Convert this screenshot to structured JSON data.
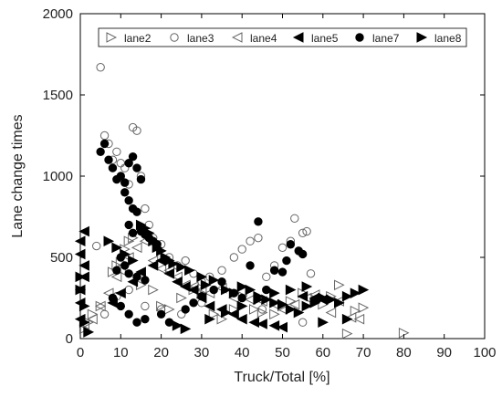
{
  "chart_data": {
    "type": "scatter",
    "title": "",
    "xlabel": "Truck/Total [%]",
    "ylabel": "Lane change times",
    "xlim": [
      0,
      100
    ],
    "ylim": [
      0,
      2000
    ],
    "xticks": [
      0,
      10,
      20,
      30,
      40,
      50,
      60,
      70,
      80,
      90,
      100
    ],
    "yticks": [
      0,
      500,
      1000,
      1500,
      2000
    ],
    "grid": false,
    "legend_position": "top",
    "series": [
      {
        "name": "lane2",
        "marker": "triangle-right-open",
        "color": "#666666",
        "points": [
          [
            1,
            60
          ],
          [
            2,
            40
          ],
          [
            2,
            100
          ],
          [
            3,
            150
          ],
          [
            5,
            200
          ],
          [
            8,
            410
          ],
          [
            9,
            450
          ],
          [
            10,
            470
          ],
          [
            11,
            550
          ],
          [
            12,
            600
          ],
          [
            13,
            620
          ],
          [
            15,
            330
          ],
          [
            18,
            300
          ],
          [
            20,
            200
          ],
          [
            22,
            180
          ],
          [
            25,
            250
          ],
          [
            28,
            300
          ],
          [
            30,
            280
          ],
          [
            33,
            150
          ],
          [
            35,
            120
          ],
          [
            38,
            180
          ],
          [
            40,
            200
          ],
          [
            43,
            180
          ],
          [
            45,
            160
          ],
          [
            48,
            150
          ],
          [
            50,
            200
          ],
          [
            52,
            230
          ],
          [
            55,
            280
          ],
          [
            60,
            210
          ],
          [
            62,
            260
          ],
          [
            64,
            330
          ],
          [
            66,
            30
          ],
          [
            68,
            170
          ],
          [
            70,
            190
          ],
          [
            80,
            35
          ]
        ]
      },
      {
        "name": "lane3",
        "marker": "circle-open",
        "color": "#666666",
        "points": [
          [
            4,
            570
          ],
          [
            5,
            1670
          ],
          [
            6,
            1250
          ],
          [
            7,
            1200
          ],
          [
            8,
            1100
          ],
          [
            9,
            1150
          ],
          [
            10,
            1080
          ],
          [
            11,
            1050
          ],
          [
            12,
            950
          ],
          [
            13,
            1300
          ],
          [
            14,
            1280
          ],
          [
            15,
            1000
          ],
          [
            16,
            800
          ],
          [
            17,
            700
          ],
          [
            18,
            620
          ],
          [
            20,
            580
          ],
          [
            22,
            500
          ],
          [
            24,
            450
          ],
          [
            26,
            480
          ],
          [
            28,
            400
          ],
          [
            30,
            350
          ],
          [
            32,
            380
          ],
          [
            35,
            420
          ],
          [
            38,
            500
          ],
          [
            40,
            550
          ],
          [
            42,
            600
          ],
          [
            44,
            620
          ],
          [
            46,
            380
          ],
          [
            48,
            450
          ],
          [
            50,
            560
          ],
          [
            52,
            600
          ],
          [
            53,
            740
          ],
          [
            55,
            650
          ],
          [
            56,
            660
          ],
          [
            57,
            400
          ],
          [
            6,
            150
          ],
          [
            9,
            260
          ],
          [
            12,
            300
          ],
          [
            16,
            200
          ],
          [
            20,
            180
          ],
          [
            25,
            150
          ],
          [
            30,
            220
          ],
          [
            45,
            180
          ],
          [
            55,
            100
          ]
        ]
      },
      {
        "name": "lane4",
        "marker": "triangle-left-open",
        "color": "#666666",
        "points": [
          [
            1,
            80
          ],
          [
            3,
            120
          ],
          [
            5,
            200
          ],
          [
            7,
            280
          ],
          [
            9,
            380
          ],
          [
            10,
            420
          ],
          [
            12,
            500
          ],
          [
            14,
            560
          ],
          [
            16,
            600
          ],
          [
            18,
            480
          ],
          [
            20,
            430
          ],
          [
            22,
            420
          ],
          [
            24,
            380
          ],
          [
            26,
            330
          ],
          [
            28,
            320
          ],
          [
            30,
            300
          ],
          [
            32,
            280
          ],
          [
            35,
            310
          ],
          [
            38,
            250
          ],
          [
            40,
            290
          ],
          [
            42,
            240
          ],
          [
            45,
            230
          ],
          [
            48,
            210
          ],
          [
            50,
            180
          ],
          [
            53,
            210
          ],
          [
            56,
            250
          ],
          [
            58,
            270
          ],
          [
            62,
            160
          ],
          [
            64,
            230
          ],
          [
            67,
            130
          ],
          [
            69,
            120
          ]
        ]
      },
      {
        "name": "lane5",
        "marker": "triangle-left-filled",
        "color": "#000000",
        "points": [
          [
            0,
            120
          ],
          [
            0,
            220
          ],
          [
            0,
            300
          ],
          [
            1,
            380
          ],
          [
            1,
            450
          ],
          [
            0,
            520
          ],
          [
            0,
            600
          ],
          [
            1,
            660
          ],
          [
            8,
            220
          ],
          [
            10,
            280
          ],
          [
            13,
            350
          ],
          [
            15,
            410
          ],
          [
            18,
            450
          ],
          [
            20,
            480
          ],
          [
            22,
            400
          ],
          [
            24,
            350
          ],
          [
            26,
            320
          ],
          [
            28,
            300
          ],
          [
            30,
            250
          ],
          [
            32,
            200
          ],
          [
            35,
            180
          ],
          [
            38,
            150
          ],
          [
            40,
            120
          ],
          [
            43,
            100
          ],
          [
            45,
            90
          ],
          [
            48,
            80
          ],
          [
            50,
            70
          ],
          [
            55,
            260
          ],
          [
            58,
            250
          ],
          [
            60,
            240
          ]
        ]
      },
      {
        "name": "lane7",
        "marker": "circle-filled",
        "color": "#000000",
        "points": [
          [
            5,
            1150
          ],
          [
            6,
            1200
          ],
          [
            7,
            1100
          ],
          [
            8,
            1050
          ],
          [
            9,
            980
          ],
          [
            10,
            1000
          ],
          [
            11,
            960
          ],
          [
            12,
            1080
          ],
          [
            13,
            1120
          ],
          [
            14,
            1050
          ],
          [
            15,
            980
          ],
          [
            11,
            900
          ],
          [
            12,
            850
          ],
          [
            13,
            800
          ],
          [
            14,
            780
          ],
          [
            15,
            660
          ],
          [
            16,
            640
          ],
          [
            17,
            620
          ],
          [
            18,
            600
          ],
          [
            19,
            580
          ],
          [
            12,
            700
          ],
          [
            13,
            650
          ],
          [
            10,
            500
          ],
          [
            11,
            450
          ],
          [
            9,
            420
          ],
          [
            12,
            400
          ],
          [
            14,
            380
          ],
          [
            16,
            360
          ],
          [
            8,
            250
          ],
          [
            10,
            200
          ],
          [
            12,
            150
          ],
          [
            14,
            100
          ],
          [
            16,
            120
          ],
          [
            20,
            150
          ],
          [
            22,
            100
          ],
          [
            26,
            180
          ],
          [
            28,
            220
          ],
          [
            30,
            260
          ],
          [
            33,
            300
          ],
          [
            35,
            350
          ],
          [
            38,
            280
          ],
          [
            40,
            250
          ],
          [
            42,
            450
          ],
          [
            44,
            720
          ],
          [
            46,
            300
          ],
          [
            48,
            420
          ],
          [
            50,
            410
          ],
          [
            51,
            480
          ],
          [
            52,
            580
          ],
          [
            54,
            540
          ],
          [
            55,
            520
          ]
        ]
      },
      {
        "name": "lane8",
        "marker": "triangle-right-filled",
        "color": "#000000",
        "points": [
          [
            0,
            300
          ],
          [
            0,
            380
          ],
          [
            1,
            200
          ],
          [
            1,
            100
          ],
          [
            2,
            40
          ],
          [
            7,
            600
          ],
          [
            9,
            560
          ],
          [
            11,
            520
          ],
          [
            13,
            480
          ],
          [
            15,
            700
          ],
          [
            16,
            680
          ],
          [
            17,
            650
          ],
          [
            18,
            600
          ],
          [
            19,
            560
          ],
          [
            20,
            540
          ],
          [
            21,
            500
          ],
          [
            22,
            480
          ],
          [
            23,
            460
          ],
          [
            25,
            440
          ],
          [
            27,
            420
          ],
          [
            30,
            380
          ],
          [
            31,
            330
          ],
          [
            33,
            360
          ],
          [
            36,
            300
          ],
          [
            38,
            280
          ],
          [
            40,
            320
          ],
          [
            42,
            300
          ],
          [
            44,
            260
          ],
          [
            46,
            240
          ],
          [
            48,
            220
          ],
          [
            50,
            210
          ],
          [
            52,
            180
          ],
          [
            54,
            160
          ],
          [
            56,
            200
          ],
          [
            58,
            220
          ],
          [
            60,
            250
          ],
          [
            62,
            240
          ],
          [
            64,
            220
          ],
          [
            66,
            260
          ],
          [
            68,
            280
          ],
          [
            70,
            300
          ],
          [
            24,
            80
          ],
          [
            26,
            60
          ],
          [
            32,
            120
          ],
          [
            36,
            160
          ],
          [
            40,
            200
          ],
          [
            44,
            240
          ],
          [
            48,
            280
          ],
          [
            52,
            300
          ],
          [
            56,
            320
          ],
          [
            60,
            100
          ],
          [
            66,
            120
          ]
        ]
      }
    ]
  }
}
